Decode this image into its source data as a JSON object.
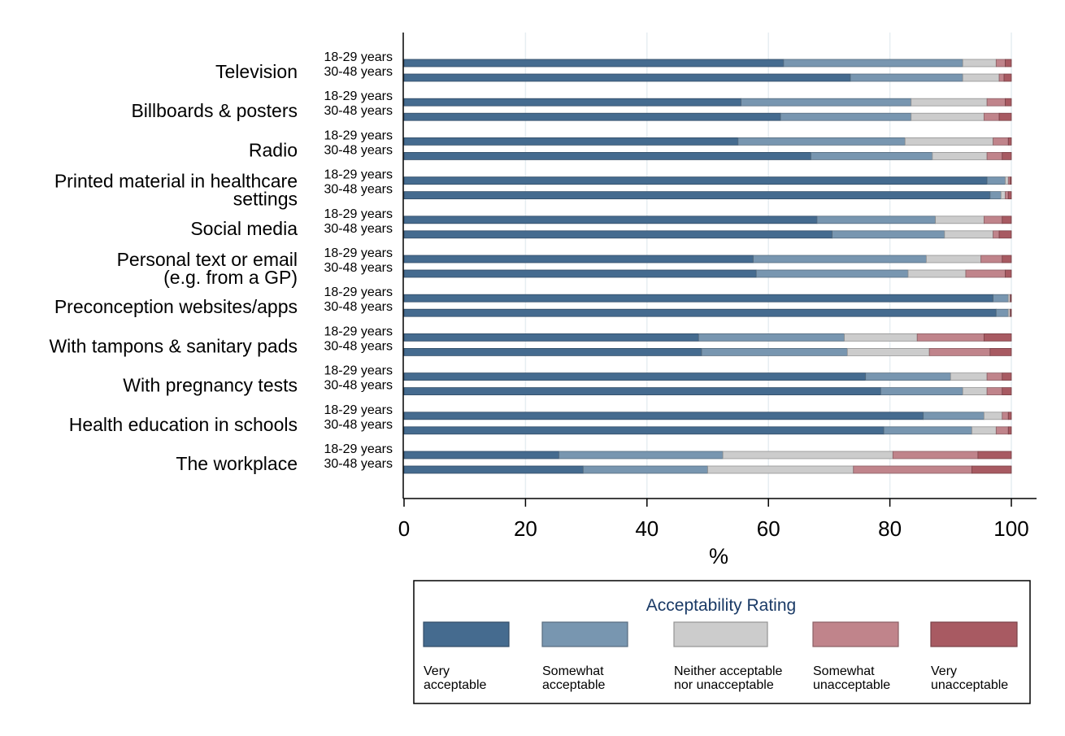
{
  "chart_data": {
    "type": "bar",
    "orientation": "horizontal",
    "stacked": true,
    "xlabel": "%",
    "xlim": [
      0,
      100
    ],
    "xticks": [
      0,
      20,
      40,
      60,
      80,
      100
    ],
    "grid": true,
    "legend": {
      "title": "Acceptability Rating",
      "placement": "bottom",
      "entries": [
        {
          "lines": [
            "Very",
            "acceptable"
          ],
          "color": "#456b8f"
        },
        {
          "lines": [
            "Somewhat",
            "acceptable"
          ],
          "color": "#7896b0"
        },
        {
          "lines": [
            "Neither acceptable",
            "nor unacceptable"
          ],
          "color": "#cccccc"
        },
        {
          "lines": [
            "Somewhat",
            "unacceptable"
          ],
          "color": "#c0848b"
        },
        {
          "lines": [
            "Very",
            "unacceptable"
          ],
          "color": "#a85a62"
        }
      ]
    },
    "colors": [
      "#456b8f",
      "#7896b0",
      "#cccccc",
      "#c0848b",
      "#a85a62"
    ],
    "series_names": [
      "Very acceptable",
      "Somewhat acceptable",
      "Neither acceptable nor unacceptable",
      "Somewhat unacceptable",
      "Very unacceptable"
    ],
    "groups": [
      "18-29 years",
      "30-48 years"
    ],
    "categories": [
      {
        "label": [
          "Television"
        ],
        "values": [
          [
            62.5,
            29.5,
            5.5,
            1.5,
            1.0
          ],
          [
            73.5,
            18.5,
            6.0,
            0.8,
            1.2
          ]
        ]
      },
      {
        "label": [
          "Billboards & posters"
        ],
        "values": [
          [
            55.5,
            28.0,
            12.5,
            3.0,
            1.0
          ],
          [
            62.0,
            21.5,
            12.0,
            2.5,
            2.0
          ]
        ]
      },
      {
        "label": [
          "Radio"
        ],
        "values": [
          [
            55.0,
            27.5,
            14.5,
            2.5,
            0.5
          ],
          [
            67.0,
            20.0,
            9.0,
            2.5,
            1.5
          ]
        ]
      },
      {
        "label": [
          "Printed material in healthcare",
          "settings"
        ],
        "values": [
          [
            96.0,
            3.0,
            0.5,
            0.3,
            0.2
          ],
          [
            96.5,
            1.8,
            0.7,
            0.5,
            0.5
          ]
        ]
      },
      {
        "label": [
          "Social media"
        ],
        "values": [
          [
            68.0,
            19.5,
            8.0,
            3.0,
            1.5
          ],
          [
            70.5,
            18.5,
            8.0,
            1.0,
            2.0
          ]
        ]
      },
      {
        "label": [
          "Personal text or email",
          "(e.g. from a GP)"
        ],
        "values": [
          [
            57.5,
            28.5,
            9.0,
            3.5,
            1.5
          ],
          [
            58.0,
            25.0,
            9.5,
            6.5,
            1.0
          ]
        ]
      },
      {
        "label": [
          "Preconception websites/apps"
        ],
        "values": [
          [
            97.0,
            2.5,
            0.3,
            0.1,
            0.1
          ],
          [
            97.5,
            2.0,
            0.3,
            0.1,
            0.1
          ]
        ]
      },
      {
        "label": [
          "With tampons & sanitary pads"
        ],
        "values": [
          [
            48.5,
            24.0,
            12.0,
            11.0,
            4.5
          ],
          [
            49.0,
            24.0,
            13.5,
            10.0,
            3.5
          ]
        ]
      },
      {
        "label": [
          "With pregnancy tests"
        ],
        "values": [
          [
            76.0,
            14.0,
            6.0,
            2.5,
            1.5
          ],
          [
            78.5,
            13.5,
            4.0,
            2.5,
            1.5
          ]
        ]
      },
      {
        "label": [
          "Health education in schools"
        ],
        "values": [
          [
            85.5,
            10.0,
            3.0,
            1.0,
            0.5
          ],
          [
            79.0,
            14.5,
            4.0,
            2.0,
            0.5
          ]
        ]
      },
      {
        "label": [
          "The workplace"
        ],
        "values": [
          [
            25.5,
            27.0,
            28.0,
            14.0,
            5.5
          ],
          [
            29.5,
            20.5,
            24.0,
            19.5,
            6.5
          ]
        ]
      }
    ]
  }
}
